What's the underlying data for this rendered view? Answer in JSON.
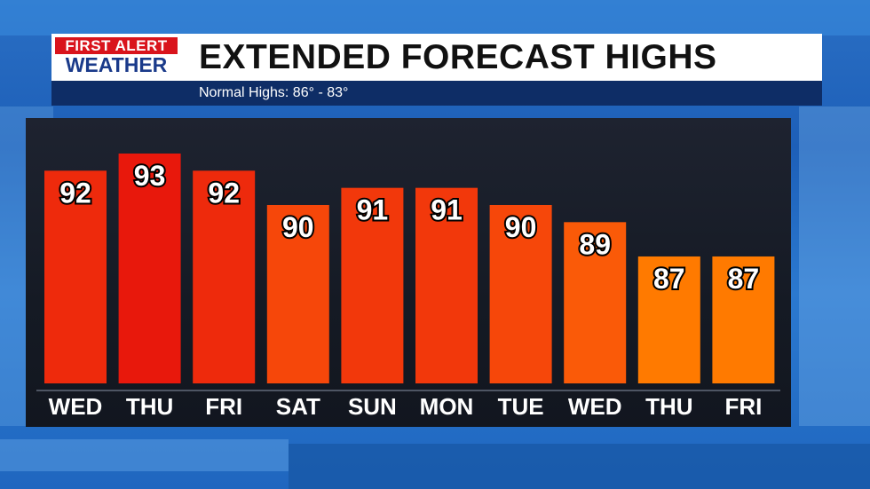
{
  "header": {
    "logo_line1": "FIRST ALERT",
    "logo_line2": "WEATHER",
    "title": "EXTENDED FORECAST HIGHS",
    "subtitle": "Normal Highs: 86° - 83°"
  },
  "colors": {
    "logo_red": "#d9141c",
    "logo_blue": "#1a3a8a",
    "subbar": "#0e2d66",
    "bar_hottest": "#e8180c",
    "bar_coolest": "#ff7a00"
  },
  "chart_data": {
    "type": "bar",
    "categories": [
      "WED",
      "THU",
      "FRI",
      "SAT",
      "SUN",
      "MON",
      "TUE",
      "WED",
      "THU",
      "FRI"
    ],
    "values": [
      92,
      93,
      92,
      90,
      91,
      91,
      90,
      89,
      87,
      87
    ],
    "title": "EXTENDED FORECAST HIGHS",
    "xlabel": "",
    "ylabel": "",
    "data_labels": true,
    "grid": false,
    "legend": "none",
    "bar_colors": [
      "#ee2a0c",
      "#e8180c",
      "#ee2a0c",
      "#f6470a",
      "#f2380b",
      "#f2380b",
      "#f6470a",
      "#fa5a08",
      "#ff7a00",
      "#ff7a00"
    ]
  }
}
